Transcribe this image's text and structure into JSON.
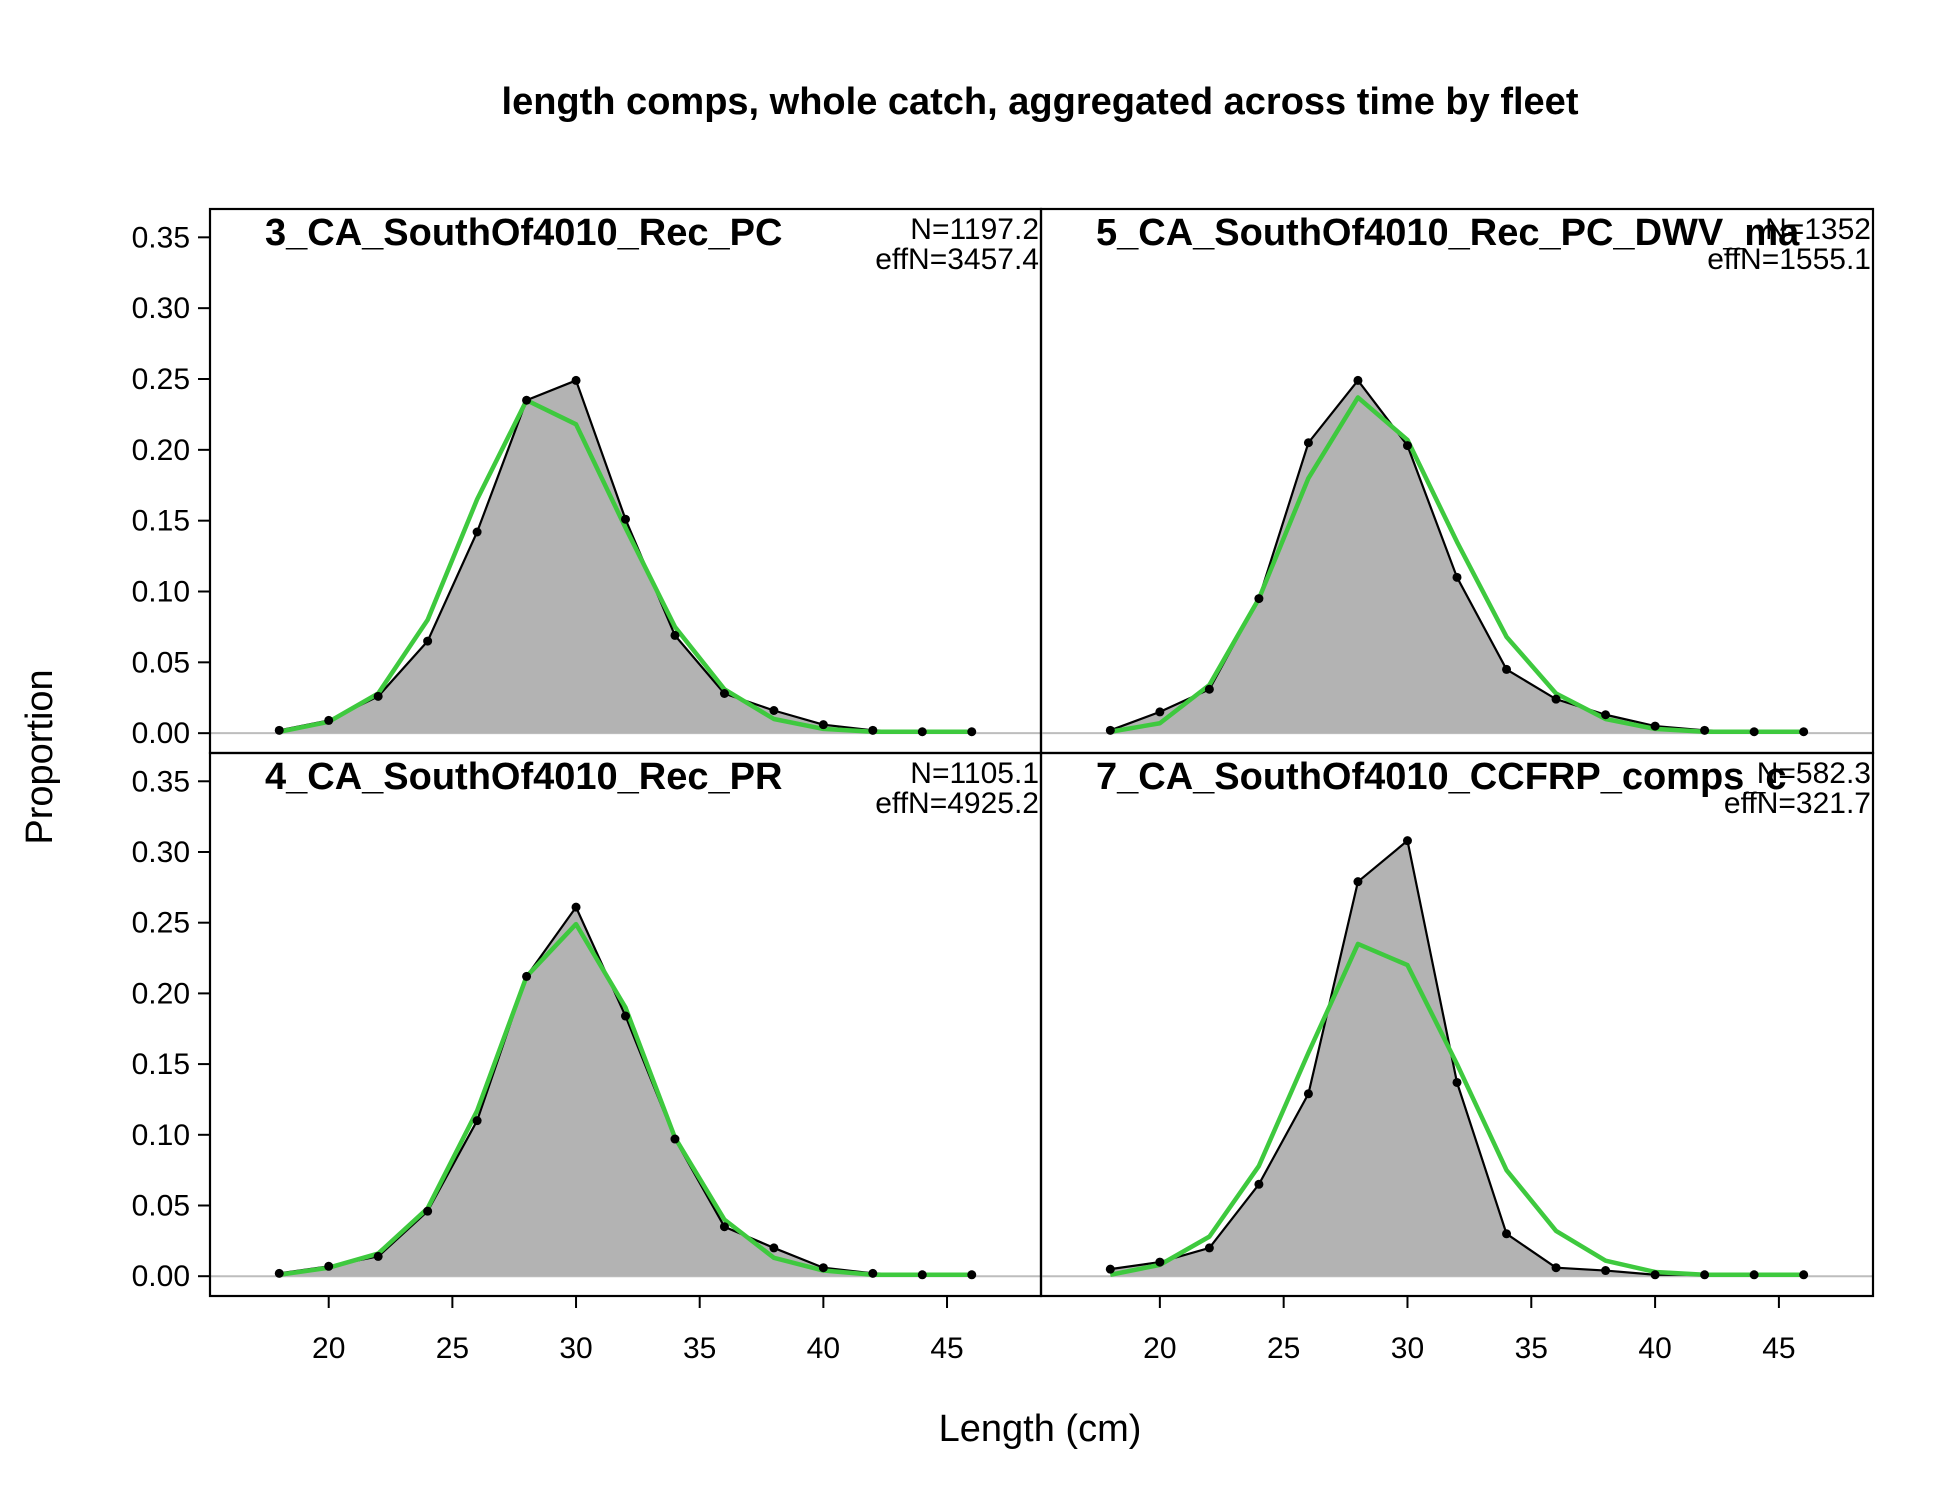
{
  "chart_data": {
    "type": "area",
    "title": "length comps, whole catch, aggregated across time by fleet",
    "xlabel": "Length (cm)",
    "ylabel": "Proportion",
    "xlim": [
      15.2,
      48.8
    ],
    "ylim": [
      -0.014,
      0.37
    ],
    "x_ticks": [
      "20",
      "25",
      "30",
      "35",
      "40",
      "45"
    ],
    "y_ticks": [
      "0.00",
      "0.05",
      "0.10",
      "0.15",
      "0.20",
      "0.25",
      "0.30",
      "0.35"
    ],
    "x": [
      18,
      20,
      22,
      24,
      26,
      28,
      30,
      32,
      34,
      36,
      38,
      40,
      42,
      44,
      46
    ],
    "colors": {
      "observed_fill": "#b3b3b3",
      "observed_line": "#000000",
      "expected_line": "#3ec93e",
      "zero_line": "#bdbdbd"
    },
    "panels": [
      {
        "title": "3_CA_SouthOf4010_Rec_PC",
        "n_label": "N=1197.2",
        "effn_label": "effN=3457.4",
        "observed": [
          0.002,
          0.009,
          0.026,
          0.065,
          0.142,
          0.235,
          0.249,
          0.151,
          0.069,
          0.028,
          0.016,
          0.006,
          0.002,
          0.001,
          0.001
        ],
        "expected": [
          0.001,
          0.008,
          0.028,
          0.08,
          0.165,
          0.235,
          0.218,
          0.145,
          0.075,
          0.031,
          0.01,
          0.003,
          0.001,
          0.001,
          0.001
        ]
      },
      {
        "title": "5_CA_SouthOf4010_Rec_PC_DWV_ma",
        "n_label": "N=1352",
        "effn_label": "effN=1555.1",
        "observed": [
          0.002,
          0.015,
          0.031,
          0.095,
          0.205,
          0.249,
          0.203,
          0.11,
          0.045,
          0.024,
          0.013,
          0.005,
          0.002,
          0.001,
          0.001
        ],
        "expected": [
          0.001,
          0.007,
          0.034,
          0.095,
          0.18,
          0.237,
          0.207,
          0.135,
          0.068,
          0.028,
          0.01,
          0.003,
          0.001,
          0.001,
          0.001
        ]
      },
      {
        "title": "4_CA_SouthOf4010_Rec_PR",
        "n_label": "N=1105.1",
        "effn_label": "effN=4925.2",
        "observed": [
          0.002,
          0.007,
          0.014,
          0.046,
          0.11,
          0.212,
          0.261,
          0.184,
          0.097,
          0.035,
          0.02,
          0.006,
          0.002,
          0.001,
          0.001
        ],
        "expected": [
          0.001,
          0.006,
          0.016,
          0.048,
          0.117,
          0.212,
          0.249,
          0.19,
          0.098,
          0.04,
          0.013,
          0.004,
          0.001,
          0.001,
          0.001
        ]
      },
      {
        "title": "7_CA_SouthOf4010_CCFRP_comps_c",
        "n_label": "N=582.3",
        "effn_label": "effN=321.7",
        "observed": [
          0.005,
          0.01,
          0.02,
          0.065,
          0.129,
          0.279,
          0.308,
          0.137,
          0.03,
          0.006,
          0.004,
          0.001,
          0.001,
          0.001,
          0.001
        ],
        "expected": [
          0.001,
          0.008,
          0.028,
          0.078,
          0.158,
          0.235,
          0.22,
          0.15,
          0.075,
          0.032,
          0.011,
          0.003,
          0.001,
          0.001,
          0.001
        ]
      }
    ]
  }
}
